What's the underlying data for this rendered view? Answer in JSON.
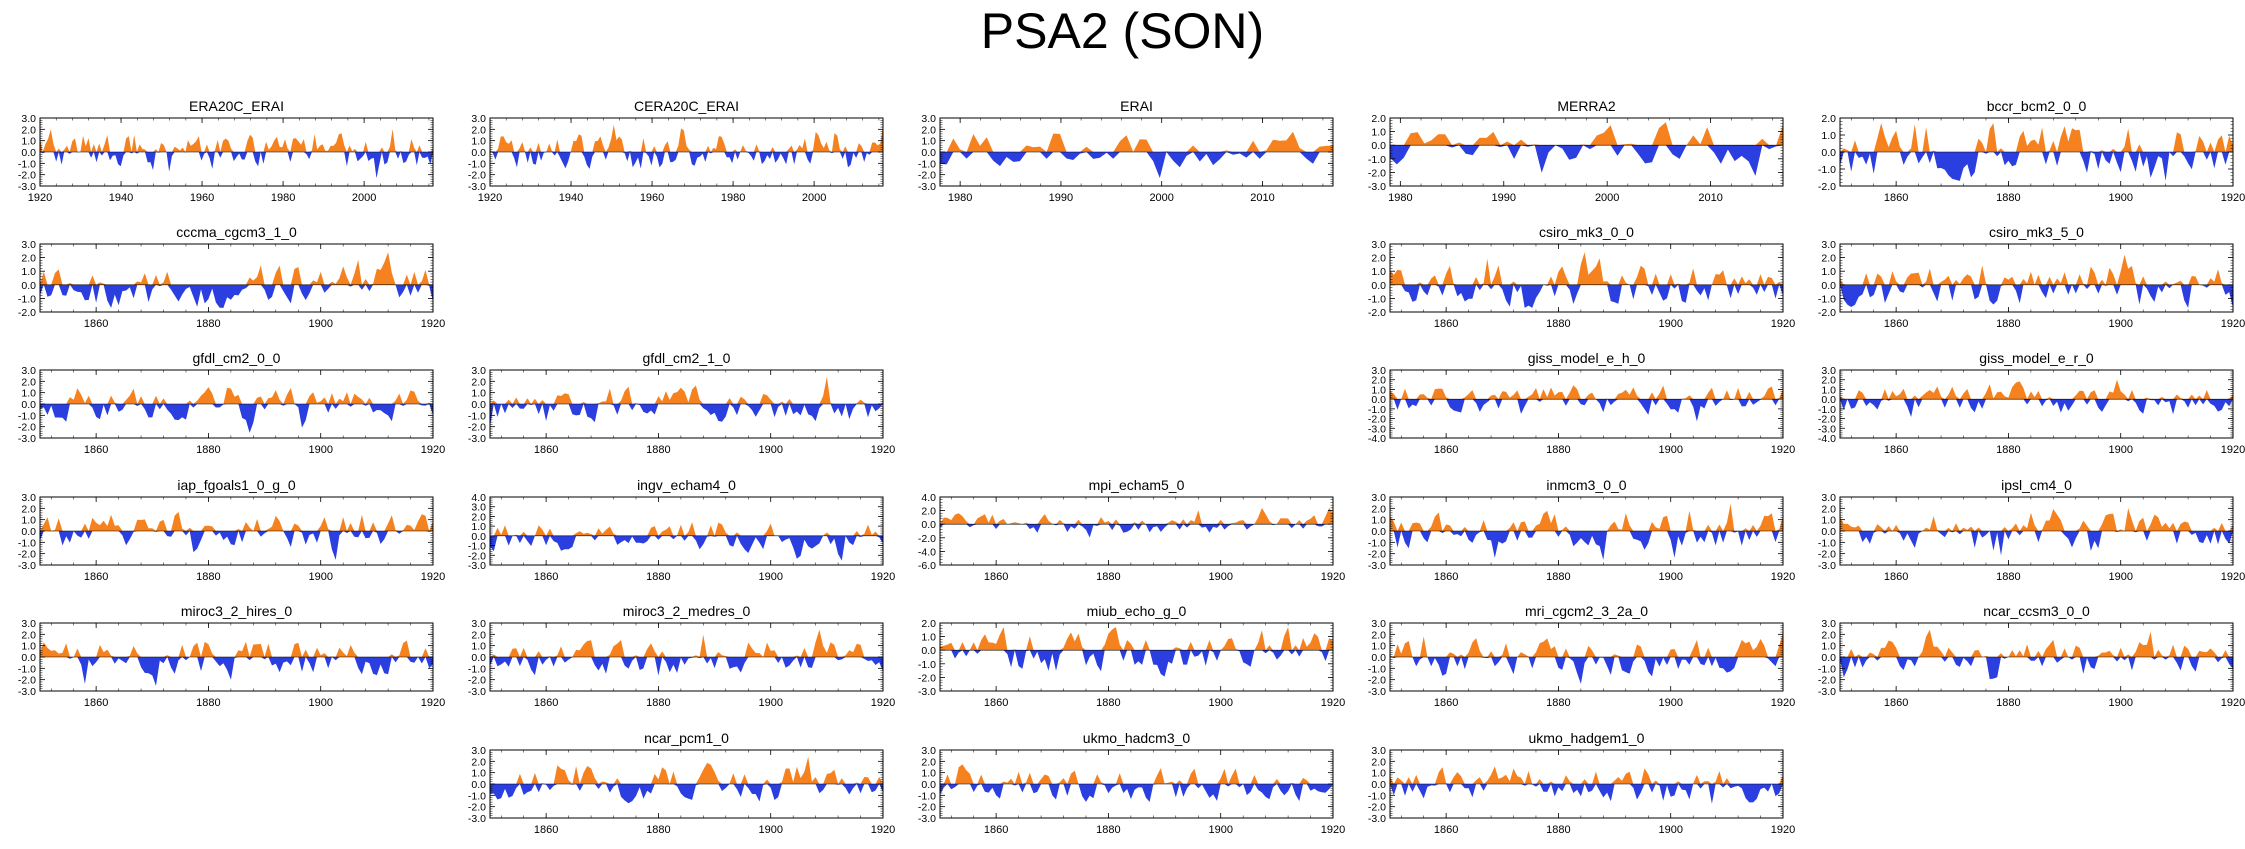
{
  "title": "PSA2 (SON)",
  "colors": {
    "positive": "#f5821f",
    "negative": "#2b3fe0",
    "axis": "#000000"
  },
  "chart_data": [
    {
      "type": "area",
      "title": "ERA20C_ERAI",
      "xlim": [
        1920,
        2017
      ],
      "xticks": [
        1920,
        1940,
        1960,
        1980,
        2000
      ],
      "ylim": [
        -3,
        3
      ],
      "yticks": [
        -3,
        -2,
        -1,
        0,
        1,
        2,
        3
      ],
      "seed": 11,
      "x": [],
      "values": []
    },
    {
      "type": "area",
      "title": "CERA20C_ERAI",
      "xlim": [
        1920,
        2017
      ],
      "xticks": [
        1920,
        1940,
        1960,
        1980,
        2000
      ],
      "ylim": [
        -3,
        3
      ],
      "yticks": [
        -3,
        -2,
        -1,
        0,
        1,
        2,
        3
      ],
      "seed": 12,
      "x": [],
      "values": []
    },
    {
      "type": "area",
      "title": "ERAI",
      "xlim": [
        1978,
        2017
      ],
      "xticks": [
        1980,
        1990,
        2000,
        2010
      ],
      "ylim": [
        -3,
        3
      ],
      "yticks": [
        -3,
        -2,
        -1,
        0,
        1,
        2,
        3
      ],
      "seed": 13,
      "x": [],
      "values": []
    },
    {
      "type": "area",
      "title": "MERRA2",
      "xlim": [
        1979,
        2017
      ],
      "xticks": [
        1980,
        1990,
        2000,
        2010
      ],
      "ylim": [
        -3,
        2
      ],
      "yticks": [
        -3,
        -2,
        -1,
        0,
        1,
        2
      ],
      "seed": 14,
      "x": [],
      "values": []
    },
    {
      "type": "area",
      "title": "bccr_bcm2_0_0",
      "xlim": [
        1850,
        1920
      ],
      "xticks": [
        1860,
        1880,
        1900,
        1920
      ],
      "ylim": [
        -2,
        2
      ],
      "yticks": [
        -2,
        -1,
        0,
        1,
        2
      ],
      "seed": 15,
      "x": [],
      "values": []
    },
    {
      "type": "area",
      "title": "cccma_cgcm3_1_0",
      "xlim": [
        1850,
        1920
      ],
      "xticks": [
        1860,
        1880,
        1900,
        1920
      ],
      "ylim": [
        -2,
        3
      ],
      "yticks": [
        -2,
        -1,
        0,
        1,
        2,
        3
      ],
      "seed": 21,
      "x": [],
      "values": []
    },
    {
      "type": "area",
      "title": "csiro_mk3_0_0",
      "xlim": [
        1850,
        1920
      ],
      "xticks": [
        1860,
        1880,
        1900,
        1920
      ],
      "ylim": [
        -2,
        3
      ],
      "yticks": [
        -2,
        -1,
        0,
        1,
        2,
        3
      ],
      "seed": 22,
      "x": [],
      "values": []
    },
    {
      "type": "area",
      "title": "csiro_mk3_5_0",
      "xlim": [
        1850,
        1920
      ],
      "xticks": [
        1860,
        1880,
        1900,
        1920
      ],
      "ylim": [
        -2,
        3
      ],
      "yticks": [
        -2,
        -1,
        0,
        1,
        2,
        3
      ],
      "seed": 23,
      "x": [],
      "values": []
    },
    {
      "type": "area",
      "title": "gfdl_cm2_0_0",
      "xlim": [
        1850,
        1920
      ],
      "xticks": [
        1860,
        1880,
        1900,
        1920
      ],
      "ylim": [
        -3,
        3
      ],
      "yticks": [
        -3,
        -2,
        -1,
        0,
        1,
        2,
        3
      ],
      "seed": 31,
      "x": [],
      "values": []
    },
    {
      "type": "area",
      "title": "gfdl_cm2_1_0",
      "xlim": [
        1850,
        1920
      ],
      "xticks": [
        1860,
        1880,
        1900,
        1920
      ],
      "ylim": [
        -3,
        3
      ],
      "yticks": [
        -3,
        -2,
        -1,
        0,
        1,
        2,
        3
      ],
      "seed": 32,
      "x": [],
      "values": []
    },
    {
      "type": "area",
      "title": "giss_model_e_h_0",
      "xlim": [
        1850,
        1920
      ],
      "xticks": [
        1860,
        1880,
        1900,
        1920
      ],
      "ylim": [
        -4,
        3
      ],
      "yticks": [
        -4,
        -3,
        -2,
        -1,
        0,
        1,
        2,
        3
      ],
      "seed": 33,
      "x": [],
      "values": []
    },
    {
      "type": "area",
      "title": "giss_model_e_r_0",
      "xlim": [
        1850,
        1920
      ],
      "xticks": [
        1860,
        1880,
        1900,
        1920
      ],
      "ylim": [
        -4,
        3
      ],
      "yticks": [
        -4,
        -3,
        -2,
        -1,
        0,
        1,
        2,
        3
      ],
      "seed": 34,
      "x": [],
      "values": []
    },
    {
      "type": "area",
      "title": "iap_fgoals1_0_g_0",
      "xlim": [
        1850,
        1920
      ],
      "xticks": [
        1860,
        1880,
        1900,
        1920
      ],
      "ylim": [
        -3,
        3
      ],
      "yticks": [
        -3,
        -2,
        -1,
        0,
        1,
        2,
        3
      ],
      "seed": 41,
      "x": [],
      "values": []
    },
    {
      "type": "area",
      "title": "ingv_echam4_0",
      "xlim": [
        1850,
        1920
      ],
      "xticks": [
        1860,
        1880,
        1900,
        1920
      ],
      "ylim": [
        -3,
        4
      ],
      "yticks": [
        -3,
        -2,
        -1,
        0,
        1,
        2,
        3,
        4
      ],
      "seed": 42,
      "x": [],
      "values": []
    },
    {
      "type": "area",
      "title": "mpi_echam5_0",
      "xlim": [
        1850,
        1920
      ],
      "xticks": [
        1860,
        1880,
        1900,
        1920
      ],
      "ylim": [
        -6,
        4
      ],
      "yticks": [
        -6,
        -4,
        -2,
        0,
        2,
        4
      ],
      "seed": 43,
      "x": [],
      "values": []
    },
    {
      "type": "area",
      "title": "inmcm3_0_0",
      "xlim": [
        1850,
        1920
      ],
      "xticks": [
        1860,
        1880,
        1900,
        1920
      ],
      "ylim": [
        -3,
        3
      ],
      "yticks": [
        -3,
        -2,
        -1,
        0,
        1,
        2,
        3
      ],
      "seed": 44,
      "x": [],
      "values": []
    },
    {
      "type": "area",
      "title": "ipsl_cm4_0",
      "xlim": [
        1850,
        1920
      ],
      "xticks": [
        1860,
        1880,
        1900,
        1920
      ],
      "ylim": [
        -3,
        3
      ],
      "yticks": [
        -3,
        -2,
        -1,
        0,
        1,
        2,
        3
      ],
      "seed": 45,
      "x": [],
      "values": []
    },
    {
      "type": "area",
      "title": "miroc3_2_hires_0",
      "xlim": [
        1850,
        1920
      ],
      "xticks": [
        1860,
        1880,
        1900,
        1920
      ],
      "ylim": [
        -3,
        3
      ],
      "yticks": [
        -3,
        -2,
        -1,
        0,
        1,
        2,
        3
      ],
      "seed": 51,
      "x": [],
      "values": []
    },
    {
      "type": "area",
      "title": "miroc3_2_medres_0",
      "xlim": [
        1850,
        1920
      ],
      "xticks": [
        1860,
        1880,
        1900,
        1920
      ],
      "ylim": [
        -3,
        3
      ],
      "yticks": [
        -3,
        -2,
        -1,
        0,
        1,
        2,
        3
      ],
      "seed": 52,
      "x": [],
      "values": []
    },
    {
      "type": "area",
      "title": "miub_echo_g_0",
      "xlim": [
        1850,
        1920
      ],
      "xticks": [
        1860,
        1880,
        1900,
        1920
      ],
      "ylim": [
        -3,
        2
      ],
      "yticks": [
        -3,
        -2,
        -1,
        0,
        1,
        2
      ],
      "seed": 53,
      "x": [],
      "values": []
    },
    {
      "type": "area",
      "title": "mri_cgcm2_3_2a_0",
      "xlim": [
        1850,
        1920
      ],
      "xticks": [
        1860,
        1880,
        1900,
        1920
      ],
      "ylim": [
        -3,
        3
      ],
      "yticks": [
        -3,
        -2,
        -1,
        0,
        1,
        2,
        3
      ],
      "seed": 54,
      "x": [],
      "values": []
    },
    {
      "type": "area",
      "title": "ncar_ccsm3_0_0",
      "xlim": [
        1850,
        1920
      ],
      "xticks": [
        1860,
        1880,
        1900,
        1920
      ],
      "ylim": [
        -3,
        3
      ],
      "yticks": [
        -3,
        -2,
        -1,
        0,
        1,
        2,
        3
      ],
      "seed": 55,
      "x": [],
      "values": []
    },
    {
      "type": "area",
      "title": "ncar_pcm1_0",
      "xlim": [
        1850,
        1920
      ],
      "xticks": [
        1860,
        1880,
        1900,
        1920
      ],
      "ylim": [
        -3,
        3
      ],
      "yticks": [
        -3,
        -2,
        -1,
        0,
        1,
        2,
        3
      ],
      "seed": 62,
      "x": [],
      "values": []
    },
    {
      "type": "area",
      "title": "ukmo_hadcm3_0",
      "xlim": [
        1850,
        1920
      ],
      "xticks": [
        1860,
        1880,
        1900,
        1920
      ],
      "ylim": [
        -3,
        3
      ],
      "yticks": [
        -3,
        -2,
        -1,
        0,
        1,
        2,
        3
      ],
      "seed": 63,
      "x": [],
      "values": []
    },
    {
      "type": "area",
      "title": "ukmo_hadgem1_0",
      "xlim": [
        1850,
        1920
      ],
      "xticks": [
        1860,
        1880,
        1900,
        1920
      ],
      "ylim": [
        -3,
        3
      ],
      "yticks": [
        -3,
        -2,
        -1,
        0,
        1,
        2,
        3
      ],
      "seed": 64,
      "x": [],
      "values": []
    }
  ]
}
